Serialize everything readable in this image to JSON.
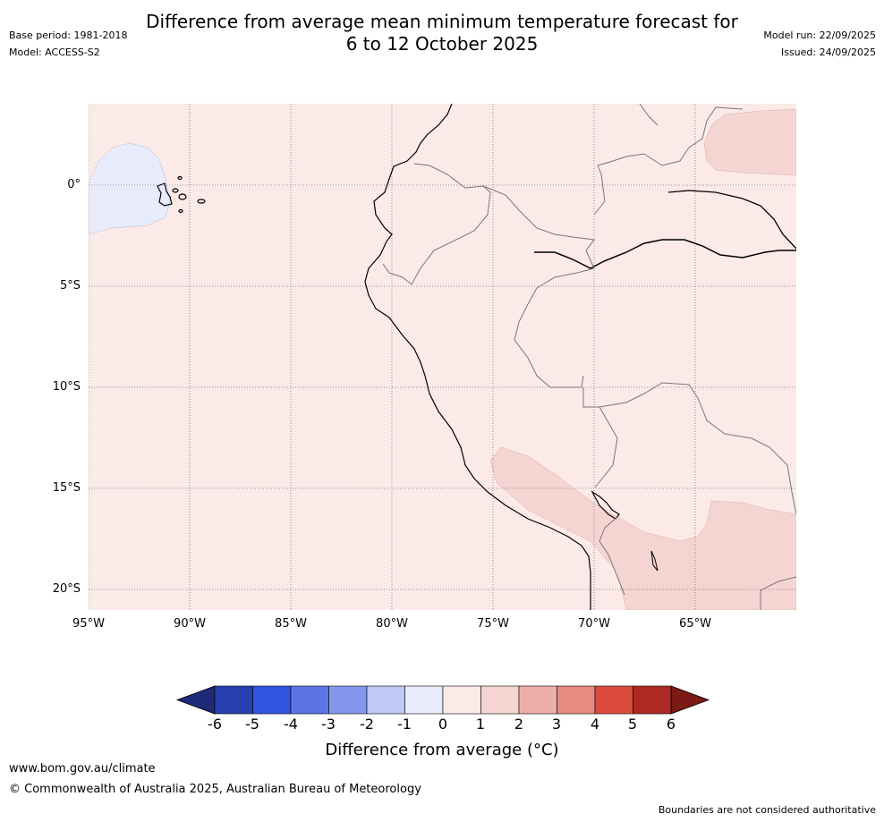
{
  "title_line1": "Difference from average mean minimum temperature forecast for",
  "title_line2": "6 to 12 October 2025",
  "base_period": "Base period: 1981-2018",
  "model": "Model: ACCESS-S2",
  "model_run": "Model run: 22/09/2025",
  "issued": "Issued: 24/09/2025",
  "lon_ticks": [
    "95°W",
    "90°W",
    "85°W",
    "80°W",
    "75°W",
    "70°W",
    "65°W"
  ],
  "lat_ticks": [
    "0°",
    "5°S",
    "10°S",
    "15°S",
    "20°S"
  ],
  "colorbar": {
    "labels": [
      "-6",
      "-5",
      "-4",
      "-3",
      "-2",
      "-1",
      "0",
      "1",
      "2",
      "3",
      "4",
      "5",
      "6"
    ],
    "colors": [
      "#1c2a78",
      "#253fae",
      "#3253e1",
      "#5c74e6",
      "#8497ec",
      "#c0c8f4",
      "#e8ebfb",
      "#fbeae8",
      "#f4d5d2",
      "#eeaea8",
      "#e78a80",
      "#dc4a3e",
      "#ad2a22",
      "#7c1a16"
    ],
    "title": "Difference from average (°C)"
  },
  "footer_url": "www.bom.gov.au/climate",
  "footer_copyright": "© Commonwealth of Australia 2025, Australian Bureau of Meteorology",
  "footer_note": "Boundaries are not considered authoritative"
}
